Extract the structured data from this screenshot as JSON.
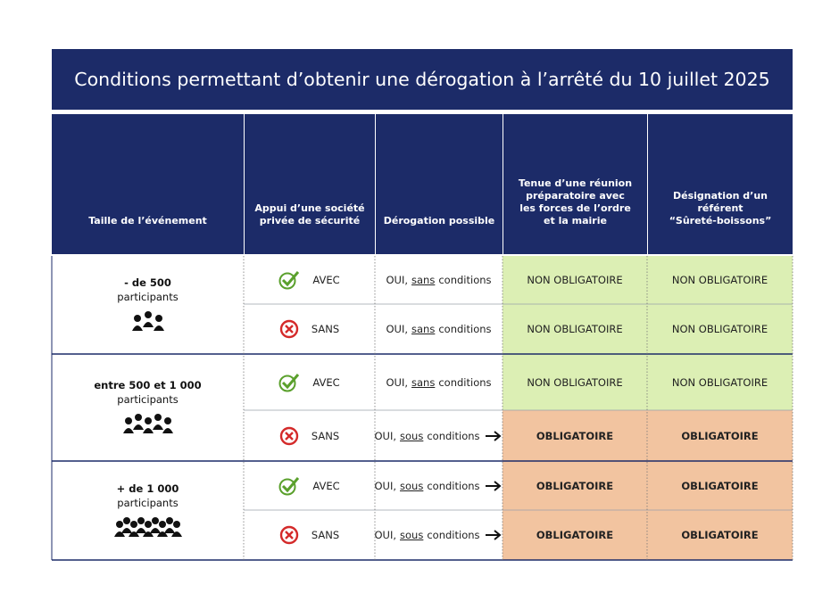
{
  "title": "Conditions permettant d’obtenir une dérogation à l’arrêté du 10 juillet 2025",
  "header": [
    {
      "lines": [
        "Taille de l’événement"
      ]
    },
    {
      "lines": [
        "Appui d’une société",
        "privée de sécurité"
      ]
    },
    {
      "lines": [
        "Dérogation possible"
      ]
    },
    {
      "lines": [
        "Tenue d’une réunion",
        "préparatoire avec",
        "les forces de l’ordre",
        "et la mairie"
      ]
    },
    {
      "lines": [
        "Désignation d’un",
        "référent",
        "“Sûreté-boissons”"
      ]
    }
  ],
  "groups": [
    {
      "size": "- de 500",
      "unit": "participants",
      "rows": [
        {
          "security": "AVEC",
          "derogation": {
            "answer": "OUI,",
            "condition": "sans",
            "rest": "conditions"
          },
          "meeting": "NON OBLIGATOIRE",
          "referent": "NON OBLIGATOIRE",
          "color": "#dcefb4"
        },
        {
          "security": "SANS",
          "derogation": {
            "answer": "OUI,",
            "condition": "sans",
            "rest": "conditions"
          },
          "meeting": "NON OBLIGATOIRE",
          "referent": "NON OBLIGATOIRE",
          "color": "#dcefb4"
        }
      ]
    },
    {
      "size": "entre 500 et 1 000",
      "unit": "participants",
      "rows": [
        {
          "security": "AVEC",
          "derogation": {
            "answer": "OUI,",
            "condition": "sans",
            "rest": "conditions"
          },
          "meeting": "NON OBLIGATOIRE",
          "referent": "NON OBLIGATOIRE",
          "color": "#dcefb4"
        },
        {
          "security": "SANS",
          "derogation": {
            "answer": "OUI,",
            "condition": "sous",
            "rest": "conditions"
          },
          "meeting": "OBLIGATOIRE",
          "referent": "OBLIGATOIRE",
          "color": "#f2c4a0"
        }
      ]
    },
    {
      "size": "+ de 1 000",
      "unit": "participants",
      "rows": [
        {
          "security": "AVEC",
          "derogation": {
            "answer": "OUI,",
            "condition": "sous",
            "rest": "conditions"
          },
          "meeting": "OBLIGATOIRE",
          "referent": "OBLIGATOIRE",
          "color": "#f2c4a0"
        },
        {
          "security": "SANS",
          "derogation": {
            "answer": "OUI,",
            "condition": "sous",
            "rest": "conditions"
          },
          "meeting": "OBLIGATOIRE",
          "referent": "OBLIGATOIRE",
          "color": "#f2c4a0"
        }
      ]
    }
  ]
}
